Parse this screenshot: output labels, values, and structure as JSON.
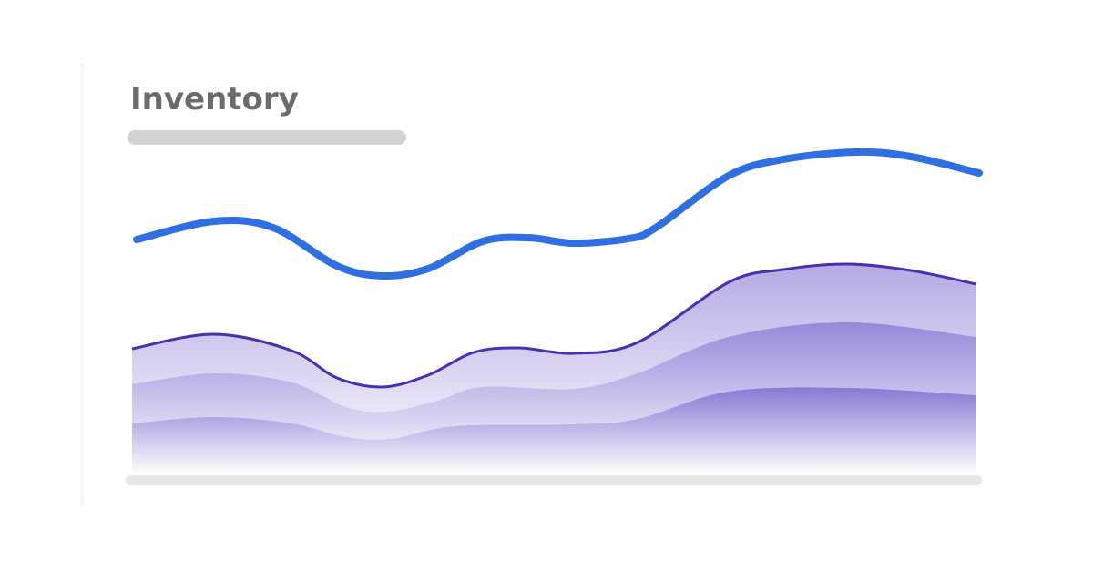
{
  "header": {
    "title": "Inventory"
  }
}
